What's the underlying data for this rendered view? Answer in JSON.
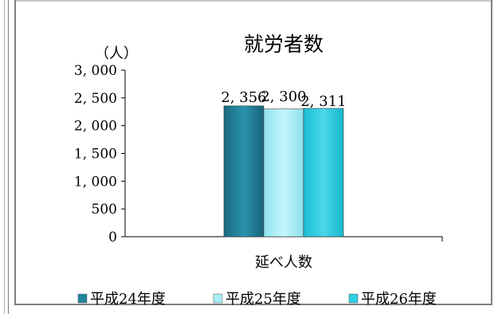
{
  "chart_data": {
    "type": "bar",
    "title": "就労者数",
    "unit_label": "（人）",
    "xlabel": "",
    "ylabel": "",
    "categories": [
      "延べ人数"
    ],
    "series": [
      {
        "name": "平成24年度",
        "values": [
          2356
        ],
        "labels": [
          "2, 356"
        ],
        "color": "#23849c"
      },
      {
        "name": "平成25年度",
        "values": [
          2300
        ],
        "labels": [
          "2, 300"
        ],
        "color": "#a8eef6"
      },
      {
        "name": "平成26年度",
        "values": [
          2311
        ],
        "labels": [
          "2, 311"
        ],
        "color": "#2ed0e4"
      }
    ],
    "ylim": [
      0,
      3000
    ],
    "yticks": [
      0,
      500,
      1000,
      1500,
      2000,
      2500,
      3000
    ],
    "ytick_labels": [
      "0",
      "500",
      "1, 000",
      "1, 500",
      "2, 000",
      "2, 500",
      "3, 000"
    ],
    "grid": false,
    "legend": "bottom"
  }
}
